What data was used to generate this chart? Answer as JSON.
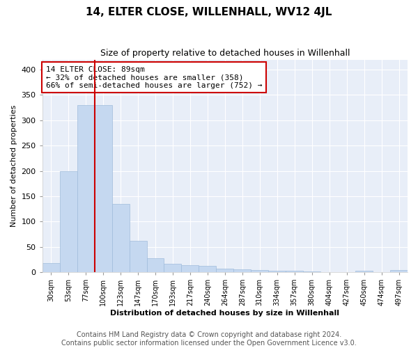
{
  "title": "14, ELTER CLOSE, WILLENHALL, WV12 4JL",
  "subtitle": "Size of property relative to detached houses in Willenhall",
  "xlabel": "Distribution of detached houses by size in Willenhall",
  "ylabel": "Number of detached properties",
  "categories": [
    "30sqm",
    "53sqm",
    "77sqm",
    "100sqm",
    "123sqm",
    "147sqm",
    "170sqm",
    "193sqm",
    "217sqm",
    "240sqm",
    "264sqm",
    "287sqm",
    "310sqm",
    "334sqm",
    "357sqm",
    "380sqm",
    "404sqm",
    "427sqm",
    "450sqm",
    "474sqm",
    "497sqm"
  ],
  "values": [
    18,
    200,
    330,
    330,
    135,
    62,
    27,
    16,
    14,
    13,
    7,
    5,
    4,
    3,
    3,
    2,
    0,
    0,
    3,
    0,
    4
  ],
  "bar_color": "#c5d8f0",
  "bar_edge_color": "#a0bcdc",
  "vline_x": 2.5,
  "vline_color": "#cc0000",
  "annotation_text": "14 ELTER CLOSE: 89sqm\n← 32% of detached houses are smaller (358)\n66% of semi-detached houses are larger (752) →",
  "annotation_box_facecolor": "#ffffff",
  "annotation_box_edgecolor": "#cc0000",
  "ylim": [
    0,
    420
  ],
  "yticks": [
    0,
    50,
    100,
    150,
    200,
    250,
    300,
    350,
    400
  ],
  "footnote": "Contains HM Land Registry data © Crown copyright and database right 2024.\nContains public sector information licensed under the Open Government Licence v3.0.",
  "bg_color": "#ffffff",
  "plot_bg_color": "#e8eef8",
  "grid_color": "#ffffff",
  "title_fontsize": 11,
  "subtitle_fontsize": 9,
  "axis_fontsize": 8,
  "footnote_fontsize": 7
}
